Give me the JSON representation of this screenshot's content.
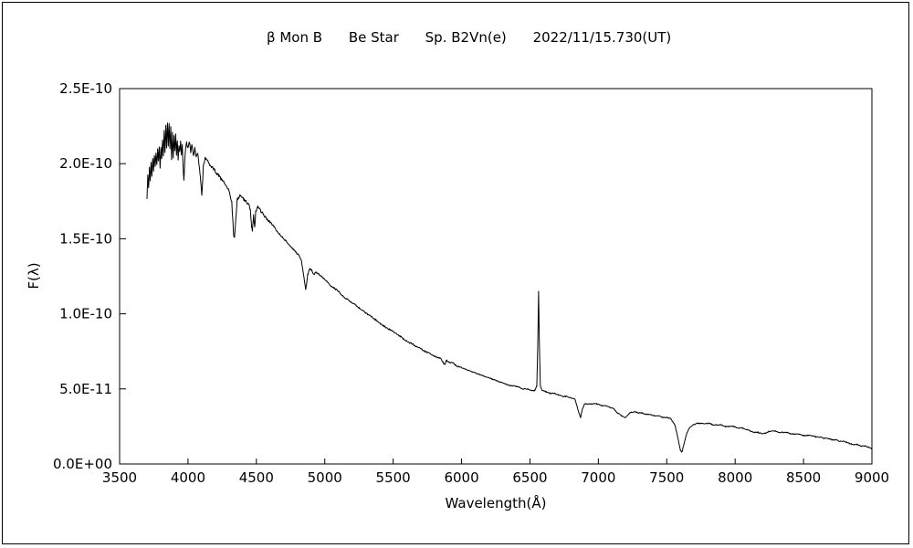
{
  "header": {
    "object": "β Mon B",
    "star_type": "Be Star",
    "spectral_type": "Sp. B2Vn(e)",
    "obs_date": "2022/11/15.730(UT)"
  },
  "chart_data": {
    "type": "line",
    "title": "β Mon B  Be Star  Sp. B2Vn(e)  2022/11/15.730(UT)",
    "xlabel": "Wavelength(Å)",
    "ylabel": "F(λ)",
    "xlim": [
      3500,
      9000
    ],
    "ylim": [
      0,
      2.5e-10
    ],
    "grid": false,
    "legend": "none",
    "x_ticks": [
      3500,
      4000,
      4500,
      5000,
      5500,
      6000,
      6500,
      7000,
      7500,
      8000,
      8500,
      9000
    ],
    "y_ticks": [
      {
        "value": 0.0,
        "label": "0.0E+00"
      },
      {
        "value": 5e-11,
        "label": "5.0E-11"
      },
      {
        "value": 1e-10,
        "label": "1.0E-10"
      },
      {
        "value": 1.5e-10,
        "label": "1.5E-10"
      },
      {
        "value": 2e-10,
        "label": "2.0E-10"
      },
      {
        "value": 2.5e-10,
        "label": "2.5E-10"
      }
    ],
    "y_scale": 1e-10,
    "series": [
      {
        "name": "β Mon B flux spectrum",
        "points": [
          [
            3700,
            1.76
          ],
          [
            3706,
            1.92
          ],
          [
            3712,
            1.84
          ],
          [
            3718,
            1.97
          ],
          [
            3724,
            1.88
          ],
          [
            3730,
            2.0
          ],
          [
            3736,
            1.92
          ],
          [
            3742,
            2.03
          ],
          [
            3748,
            1.95
          ],
          [
            3754,
            2.06
          ],
          [
            3760,
            1.98
          ],
          [
            3766,
            2.08
          ],
          [
            3772,
            1.99
          ],
          [
            3778,
            2.09
          ],
          [
            3784,
            2.02
          ],
          [
            3790,
            2.12
          ],
          [
            3796,
            1.98
          ],
          [
            3802,
            2.1
          ],
          [
            3808,
            2.04
          ],
          [
            3814,
            2.16
          ],
          [
            3820,
            2.05
          ],
          [
            3826,
            2.22
          ],
          [
            3832,
            2.08
          ],
          [
            3838,
            2.26
          ],
          [
            3844,
            2.1
          ],
          [
            3850,
            2.28
          ],
          [
            3856,
            2.12
          ],
          [
            3862,
            2.27
          ],
          [
            3868,
            2.1
          ],
          [
            3874,
            2.24
          ],
          [
            3880,
            2.02
          ],
          [
            3886,
            2.2
          ],
          [
            3892,
            2.04
          ],
          [
            3898,
            2.18
          ],
          [
            3904,
            2.08
          ],
          [
            3910,
            2.2
          ],
          [
            3916,
            2.06
          ],
          [
            3922,
            2.16
          ],
          [
            3928,
            2.02
          ],
          [
            3934,
            2.12
          ],
          [
            3940,
            2.08
          ],
          [
            3946,
            2.16
          ],
          [
            3952,
            2.06
          ],
          [
            3958,
            2.12
          ],
          [
            3964,
            1.98
          ],
          [
            3970,
            1.88
          ],
          [
            3976,
            2.02
          ],
          [
            3982,
            2.1
          ],
          [
            3990,
            2.14
          ],
          [
            4000,
            2.1
          ],
          [
            4010,
            2.15
          ],
          [
            4020,
            2.08
          ],
          [
            4030,
            2.13
          ],
          [
            4040,
            2.06
          ],
          [
            4050,
            2.1
          ],
          [
            4060,
            2.04
          ],
          [
            4070,
            2.07
          ],
          [
            4080,
            2.0
          ],
          [
            4090,
            1.92
          ],
          [
            4101,
            1.78
          ],
          [
            4112,
            1.98
          ],
          [
            4125,
            2.04
          ],
          [
            4140,
            2.02
          ],
          [
            4160,
            1.99
          ],
          [
            4180,
            1.97
          ],
          [
            4200,
            1.95
          ],
          [
            4225,
            1.92
          ],
          [
            4250,
            1.89
          ],
          [
            4275,
            1.86
          ],
          [
            4300,
            1.82
          ],
          [
            4320,
            1.74
          ],
          [
            4334,
            1.52
          ],
          [
            4340,
            1.5
          ],
          [
            4348,
            1.62
          ],
          [
            4360,
            1.76
          ],
          [
            4380,
            1.79
          ],
          [
            4400,
            1.77
          ],
          [
            4420,
            1.75
          ],
          [
            4440,
            1.73
          ],
          [
            4455,
            1.7
          ],
          [
            4465,
            1.58
          ],
          [
            4471,
            1.55
          ],
          [
            4480,
            1.66
          ],
          [
            4488,
            1.57
          ],
          [
            4495,
            1.68
          ],
          [
            4510,
            1.71
          ],
          [
            4530,
            1.69
          ],
          [
            4550,
            1.66
          ],
          [
            4570,
            1.64
          ],
          [
            4590,
            1.62
          ],
          [
            4610,
            1.6
          ],
          [
            4630,
            1.58
          ],
          [
            4650,
            1.55
          ],
          [
            4670,
            1.53
          ],
          [
            4690,
            1.51
          ],
          [
            4710,
            1.49
          ],
          [
            4730,
            1.47
          ],
          [
            4750,
            1.45
          ],
          [
            4770,
            1.43
          ],
          [
            4790,
            1.41
          ],
          [
            4810,
            1.39
          ],
          [
            4830,
            1.35
          ],
          [
            4845,
            1.26
          ],
          [
            4861,
            1.16
          ],
          [
            4875,
            1.26
          ],
          [
            4890,
            1.3
          ],
          [
            4905,
            1.29
          ],
          [
            4920,
            1.26
          ],
          [
            4935,
            1.28
          ],
          [
            4950,
            1.27
          ],
          [
            4970,
            1.25
          ],
          [
            4990,
            1.24
          ],
          [
            5010,
            1.22
          ],
          [
            5040,
            1.19
          ],
          [
            5070,
            1.17
          ],
          [
            5100,
            1.15
          ],
          [
            5130,
            1.12
          ],
          [
            5160,
            1.1
          ],
          [
            5190,
            1.08
          ],
          [
            5220,
            1.06
          ],
          [
            5250,
            1.04
          ],
          [
            5280,
            1.02
          ],
          [
            5310,
            1.0
          ],
          [
            5340,
            0.98
          ],
          [
            5370,
            0.96
          ],
          [
            5400,
            0.94
          ],
          [
            5430,
            0.92
          ],
          [
            5460,
            0.9
          ],
          [
            5490,
            0.89
          ],
          [
            5520,
            0.87
          ],
          [
            5550,
            0.85
          ],
          [
            5580,
            0.83
          ],
          [
            5610,
            0.81
          ],
          [
            5640,
            0.8
          ],
          [
            5670,
            0.78
          ],
          [
            5700,
            0.77
          ],
          [
            5730,
            0.75
          ],
          [
            5760,
            0.74
          ],
          [
            5790,
            0.72
          ],
          [
            5820,
            0.71
          ],
          [
            5850,
            0.7
          ],
          [
            5876,
            0.66
          ],
          [
            5890,
            0.69
          ],
          [
            5910,
            0.68
          ],
          [
            5940,
            0.67
          ],
          [
            5970,
            0.65
          ],
          [
            6000,
            0.64
          ],
          [
            6030,
            0.63
          ],
          [
            6060,
            0.62
          ],
          [
            6090,
            0.61
          ],
          [
            6120,
            0.6
          ],
          [
            6150,
            0.59
          ],
          [
            6180,
            0.58
          ],
          [
            6210,
            0.57
          ],
          [
            6240,
            0.56
          ],
          [
            6270,
            0.55
          ],
          [
            6300,
            0.54
          ],
          [
            6330,
            0.53
          ],
          [
            6360,
            0.52
          ],
          [
            6390,
            0.52
          ],
          [
            6420,
            0.51
          ],
          [
            6450,
            0.5
          ],
          [
            6480,
            0.5
          ],
          [
            6510,
            0.49
          ],
          [
            6535,
            0.49
          ],
          [
            6550,
            0.52
          ],
          [
            6557,
            0.78
          ],
          [
            6563,
            1.15
          ],
          [
            6569,
            0.8
          ],
          [
            6576,
            0.52
          ],
          [
            6590,
            0.49
          ],
          [
            6620,
            0.48
          ],
          [
            6650,
            0.47
          ],
          [
            6680,
            0.47
          ],
          [
            6710,
            0.46
          ],
          [
            6740,
            0.45
          ],
          [
            6770,
            0.45
          ],
          [
            6800,
            0.44
          ],
          [
            6830,
            0.43
          ],
          [
            6855,
            0.35
          ],
          [
            6870,
            0.31
          ],
          [
            6885,
            0.37
          ],
          [
            6900,
            0.4
          ],
          [
            6930,
            0.4
          ],
          [
            6960,
            0.4
          ],
          [
            6990,
            0.4
          ],
          [
            7020,
            0.39
          ],
          [
            7050,
            0.39
          ],
          [
            7080,
            0.38
          ],
          [
            7110,
            0.37
          ],
          [
            7140,
            0.34
          ],
          [
            7170,
            0.32
          ],
          [
            7200,
            0.31
          ],
          [
            7230,
            0.34
          ],
          [
            7260,
            0.35
          ],
          [
            7290,
            0.34
          ],
          [
            7320,
            0.34
          ],
          [
            7350,
            0.33
          ],
          [
            7380,
            0.33
          ],
          [
            7410,
            0.32
          ],
          [
            7440,
            0.32
          ],
          [
            7470,
            0.31
          ],
          [
            7500,
            0.31
          ],
          [
            7530,
            0.3
          ],
          [
            7560,
            0.26
          ],
          [
            7580,
            0.18
          ],
          [
            7600,
            0.09
          ],
          [
            7612,
            0.08
          ],
          [
            7625,
            0.13
          ],
          [
            7645,
            0.2
          ],
          [
            7665,
            0.24
          ],
          [
            7690,
            0.26
          ],
          [
            7720,
            0.27
          ],
          [
            7750,
            0.27
          ],
          [
            7780,
            0.27
          ],
          [
            7810,
            0.27
          ],
          [
            7840,
            0.26
          ],
          [
            7870,
            0.26
          ],
          [
            7900,
            0.26
          ],
          [
            7930,
            0.25
          ],
          [
            7960,
            0.25
          ],
          [
            7990,
            0.25
          ],
          [
            8020,
            0.24
          ],
          [
            8050,
            0.24
          ],
          [
            8080,
            0.23
          ],
          [
            8110,
            0.22
          ],
          [
            8140,
            0.21
          ],
          [
            8170,
            0.21
          ],
          [
            8200,
            0.2
          ],
          [
            8230,
            0.21
          ],
          [
            8260,
            0.22
          ],
          [
            8290,
            0.22
          ],
          [
            8320,
            0.21
          ],
          [
            8350,
            0.21
          ],
          [
            8380,
            0.21
          ],
          [
            8410,
            0.2
          ],
          [
            8440,
            0.2
          ],
          [
            8470,
            0.2
          ],
          [
            8500,
            0.19
          ],
          [
            8530,
            0.19
          ],
          [
            8560,
            0.19
          ],
          [
            8590,
            0.18
          ],
          [
            8620,
            0.18
          ],
          [
            8650,
            0.17
          ],
          [
            8680,
            0.17
          ],
          [
            8710,
            0.16
          ],
          [
            8740,
            0.16
          ],
          [
            8770,
            0.15
          ],
          [
            8800,
            0.15
          ],
          [
            8830,
            0.14
          ],
          [
            8860,
            0.13
          ],
          [
            8890,
            0.13
          ],
          [
            8920,
            0.12
          ],
          [
            8950,
            0.12
          ],
          [
            8980,
            0.11
          ],
          [
            9000,
            0.1
          ]
        ]
      }
    ]
  },
  "colors": {
    "line": "#000000",
    "axis": "#000000",
    "background": "#ffffff"
  }
}
